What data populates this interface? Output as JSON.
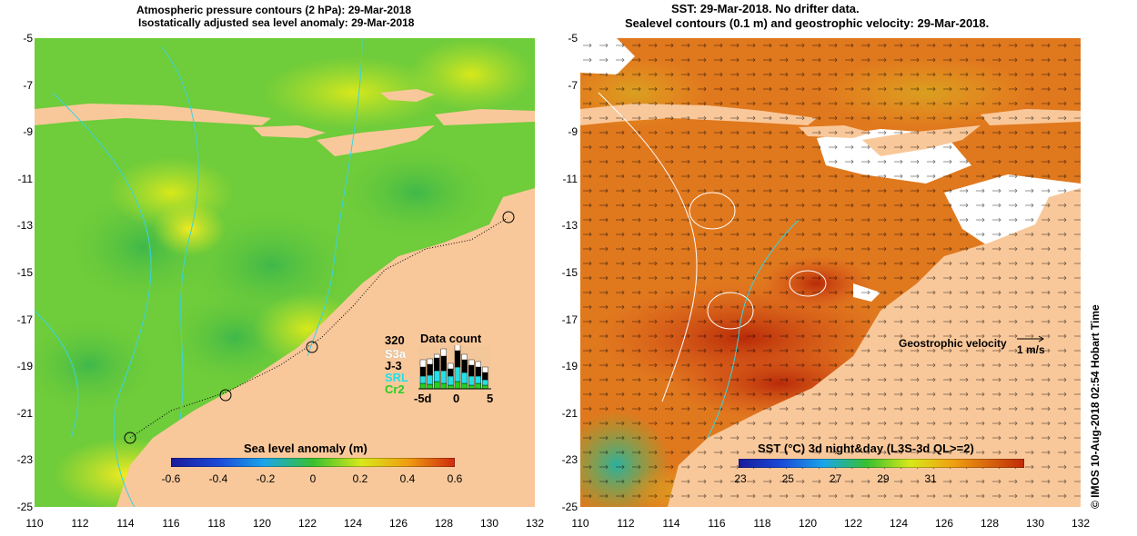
{
  "left_panel": {
    "title_line1": "Atmospheric pressure contours (2 hPa): 29-Mar-2018",
    "title_line2": "Isostatically adjusted sea level anomaly: 29-Mar-2018",
    "y_ticks": [
      "-5",
      "-7",
      "-9",
      "-11",
      "-13",
      "-15",
      "-17",
      "-19",
      "-21",
      "-23",
      "-25"
    ],
    "x_ticks": [
      "110",
      "112",
      "114",
      "116",
      "118",
      "120",
      "122",
      "124",
      "126",
      "128",
      "130",
      "132"
    ],
    "colorbar": {
      "title": "Sea level anomaly (m)",
      "ticks": [
        "-0.6",
        "-0.4",
        "-0.2",
        "0",
        "0.2",
        "0.4",
        "0.6"
      ],
      "range": [
        -0.6,
        0.6
      ]
    },
    "data_count": {
      "title": "Data count",
      "max_label": "320",
      "legend": [
        {
          "label": "S3a",
          "color": "#ffffff"
        },
        {
          "label": "J-3",
          "color": "#000000"
        },
        {
          "label": "SRL",
          "color": "#22e0e8"
        },
        {
          "label": "Cr2",
          "color": "#22d022"
        }
      ],
      "axis_ticks": [
        "-5d",
        "0",
        "5"
      ]
    }
  },
  "right_panel": {
    "title_line1": "SST: 29-Mar-2018. No drifter data.",
    "title_line2": "Sealevel contours (0.1 m) and geostrophic velocity: 29-Mar-2018.",
    "y_ticks": [
      "-5",
      "-7",
      "-9",
      "-11",
      "-13",
      "-15",
      "-17",
      "-19",
      "-21",
      "-23",
      "-25"
    ],
    "x_ticks": [
      "110",
      "112",
      "114",
      "116",
      "118",
      "120",
      "122",
      "124",
      "126",
      "128",
      "130",
      "132"
    ],
    "velocity_label": "Geostrophic velocity",
    "velocity_scale": "1 m/s",
    "colorbar": {
      "title": "SST (°C) 3d night&day (L3S-3d QL>=2)",
      "ticks": [
        "23",
        "25",
        "27",
        "29",
        "31"
      ],
      "range": [
        23,
        31
      ]
    }
  },
  "credit": "© IMOS 10-Aug-2018 02:54 Hobart Time"
}
